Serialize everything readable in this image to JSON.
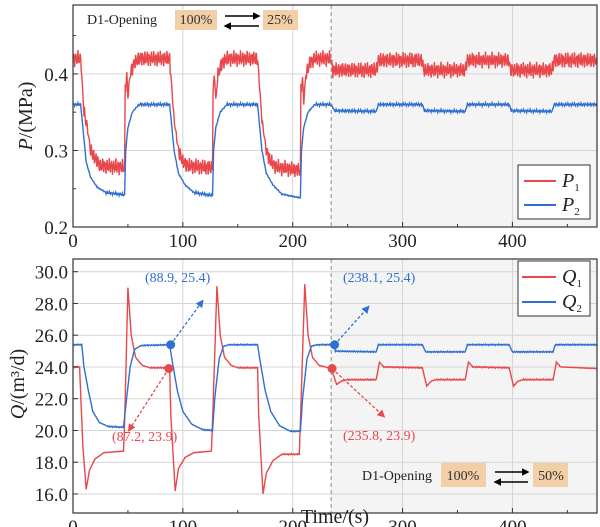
{
  "colors": {
    "series1": "#e8474b",
    "series2": "#2f6fd0",
    "shade": "#f4f4f4",
    "box": "#f3cfa8"
  },
  "chart_data": [
    {
      "type": "line",
      "ylabel_italic": "P",
      "ylabel_rest": "/(MPa)",
      "xlim": [
        0,
        477
      ],
      "ylim": [
        0.2,
        0.49
      ],
      "xticks": [
        "0",
        "100",
        "200",
        "300",
        "400"
      ],
      "yticks": [
        "0.2",
        "0.3",
        "0.4"
      ],
      "grid": true,
      "shaded_from": 235,
      "legend": "right",
      "annotation": {
        "label": "D1-Opening",
        "from": "100%",
        "to": "25%"
      },
      "series": [
        {
          "name": "P",
          "sub": "1",
          "color": "#e8474b",
          "points": [
            [
              0,
              0.42
            ],
            [
              7,
              0.42
            ],
            [
              10,
              0.35
            ],
            [
              13,
              0.33
            ],
            [
              16,
              0.3
            ],
            [
              20,
              0.29
            ],
            [
              25,
              0.28
            ],
            [
              47,
              0.278
            ],
            [
              47.5,
              0.38
            ],
            [
              49,
              0.4
            ],
            [
              50,
              0.37
            ],
            [
              52,
              0.4
            ],
            [
              56,
              0.415
            ],
            [
              60,
              0.42
            ],
            [
              88,
              0.42
            ],
            [
              89,
              0.4
            ],
            [
              92,
              0.34
            ],
            [
              96,
              0.3
            ],
            [
              100,
              0.285
            ],
            [
              105,
              0.28
            ],
            [
              127,
              0.277
            ],
            [
              127.5,
              0.38
            ],
            [
              129,
              0.395
            ],
            [
              130,
              0.365
            ],
            [
              132,
              0.4
            ],
            [
              136,
              0.415
            ],
            [
              140,
              0.42
            ],
            [
              168,
              0.42
            ],
            [
              169,
              0.4
            ],
            [
              172,
              0.34
            ],
            [
              176,
              0.3
            ],
            [
              180,
              0.285
            ],
            [
              186,
              0.278
            ],
            [
              207,
              0.274
            ],
            [
              207.5,
              0.38
            ],
            [
              209,
              0.395
            ],
            [
              210,
              0.362
            ],
            [
              212,
              0.4
            ],
            [
              216,
              0.415
            ],
            [
              220,
              0.42
            ],
            [
              235,
              0.42
            ],
            [
              236,
              0.405
            ],
            [
              276,
              0.405
            ],
            [
              278,
              0.418
            ],
            [
              318,
              0.418
            ],
            [
              319,
              0.405
            ],
            [
              357,
              0.405
            ],
            [
              359,
              0.418
            ],
            [
              397,
              0.418
            ],
            [
              398,
              0.405
            ],
            [
              436,
              0.405
            ],
            [
              438,
              0.418
            ],
            [
              477,
              0.418
            ]
          ]
        },
        {
          "name": "P",
          "sub": "2",
          "color": "#2f6fd0",
          "points": [
            [
              0,
              0.36
            ],
            [
              7,
              0.36
            ],
            [
              9,
              0.33
            ],
            [
              12,
              0.285
            ],
            [
              16,
              0.265
            ],
            [
              22,
              0.252
            ],
            [
              30,
              0.245
            ],
            [
              47,
              0.242
            ],
            [
              48,
              0.3
            ],
            [
              50,
              0.33
            ],
            [
              54,
              0.35
            ],
            [
              60,
              0.36
            ],
            [
              88,
              0.36
            ],
            [
              89,
              0.345
            ],
            [
              92,
              0.3
            ],
            [
              96,
              0.27
            ],
            [
              102,
              0.255
            ],
            [
              110,
              0.245
            ],
            [
              127,
              0.241
            ],
            [
              128,
              0.3
            ],
            [
              130,
              0.33
            ],
            [
              134,
              0.35
            ],
            [
              140,
              0.36
            ],
            [
              168,
              0.36
            ],
            [
              169,
              0.345
            ],
            [
              172,
              0.3
            ],
            [
              176,
              0.27
            ],
            [
              182,
              0.255
            ],
            [
              190,
              0.243
            ],
            [
              207,
              0.238
            ],
            [
              208,
              0.3
            ],
            [
              210,
              0.33
            ],
            [
              214,
              0.35
            ],
            [
              220,
              0.36
            ],
            [
              235,
              0.36
            ],
            [
              238,
              0.352
            ],
            [
              276,
              0.351
            ],
            [
              278,
              0.36
            ],
            [
              318,
              0.36
            ],
            [
              320,
              0.352
            ],
            [
              357,
              0.351
            ],
            [
              359,
              0.36
            ],
            [
              397,
              0.36
            ],
            [
              399,
              0.352
            ],
            [
              436,
              0.351
            ],
            [
              438,
              0.36
            ],
            [
              477,
              0.36
            ]
          ]
        }
      ]
    },
    {
      "type": "line",
      "xlabel": "Time/(s)",
      "ylabel_italic": "Q",
      "ylabel_rest": "/(m³/d)",
      "xlim": [
        0,
        477
      ],
      "ylim": [
        14.8,
        30.8
      ],
      "xticks": [
        "0",
        "100",
        "200",
        "300",
        "400"
      ],
      "yticks": [
        "16.0",
        "18.0",
        "20.0",
        "22.0",
        "24.0",
        "26.0",
        "28.0",
        "30.0"
      ],
      "grid": true,
      "shaded_from": 235,
      "legend": "top-right",
      "annotation": {
        "label": "D1-Opening",
        "from": "100%",
        "to": "50%"
      },
      "series": [
        {
          "name": "Q",
          "sub": "1",
          "color": "#e8474b",
          "points": [
            [
              0,
              24.0
            ],
            [
              6,
              24.0
            ],
            [
              9,
              19.0
            ],
            [
              12,
              16.3
            ],
            [
              15,
              17.5
            ],
            [
              20,
              18.2
            ],
            [
              28,
              18.6
            ],
            [
              46,
              18.7
            ],
            [
              47,
              20.5
            ],
            [
              50,
              29.0
            ],
            [
              53,
              26.0
            ],
            [
              57,
              24.6
            ],
            [
              63,
              24.1
            ],
            [
              70,
              23.95
            ],
            [
              88,
              23.95
            ],
            [
              89,
              21.0
            ],
            [
              93,
              16.2
            ],
            [
              96,
              17.6
            ],
            [
              102,
              18.3
            ],
            [
              110,
              18.6
            ],
            [
              126,
              18.7
            ],
            [
              127,
              20.5
            ],
            [
              131,
              29.1
            ],
            [
              134,
              26.0
            ],
            [
              138,
              24.6
            ],
            [
              144,
              24.1
            ],
            [
              150,
              23.95
            ],
            [
              168,
              23.95
            ],
            [
              169,
              21.0
            ],
            [
              173,
              16.0
            ],
            [
              176,
              17.3
            ],
            [
              182,
              18.1
            ],
            [
              190,
              18.5
            ],
            [
              206,
              18.5
            ],
            [
              207,
              20.5
            ],
            [
              211,
              29.2
            ],
            [
              214,
              26.0
            ],
            [
              218,
              24.6
            ],
            [
              224,
              24.1
            ],
            [
              235,
              23.9
            ],
            [
              237,
              23.5
            ],
            [
              240,
              22.9
            ],
            [
              244,
              23.1
            ],
            [
              250,
              23.2
            ],
            [
              276,
              23.2
            ],
            [
              279,
              24.3
            ],
            [
              283,
              24.0
            ],
            [
              318,
              23.95
            ],
            [
              322,
              22.8
            ],
            [
              326,
              23.1
            ],
            [
              330,
              23.2
            ],
            [
              357,
              23.2
            ],
            [
              360,
              24.3
            ],
            [
              364,
              24.0
            ],
            [
              397,
              23.95
            ],
            [
              401,
              22.8
            ],
            [
              405,
              23.1
            ],
            [
              410,
              23.2
            ],
            [
              437,
              23.2
            ],
            [
              440,
              24.3
            ],
            [
              444,
              24.0
            ],
            [
              477,
              23.9
            ]
          ]
        },
        {
          "name": "Q",
          "sub": "2",
          "color": "#2f6fd0",
          "points": [
            [
              0,
              25.4
            ],
            [
              8,
              25.4
            ],
            [
              10,
              24.0
            ],
            [
              14,
              22.5
            ],
            [
              18,
              21.2
            ],
            [
              24,
              20.5
            ],
            [
              32,
              20.25
            ],
            [
              46,
              20.2
            ],
            [
              48,
              21.5
            ],
            [
              52,
              24.0
            ],
            [
              56,
              25.1
            ],
            [
              62,
              25.35
            ],
            [
              88,
              25.4
            ],
            [
              90,
              24.5
            ],
            [
              95,
              22.5
            ],
            [
              100,
              21.2
            ],
            [
              108,
              20.4
            ],
            [
              118,
              20.05
            ],
            [
              127,
              20.0
            ],
            [
              129,
              22.0
            ],
            [
              133,
              24.5
            ],
            [
              137,
              25.3
            ],
            [
              142,
              25.4
            ],
            [
              168,
              25.4
            ],
            [
              170,
              24.5
            ],
            [
              175,
              22.5
            ],
            [
              180,
              21.2
            ],
            [
              188,
              20.3
            ],
            [
              198,
              19.95
            ],
            [
              207,
              19.95
            ],
            [
              209,
              22.0
            ],
            [
              213,
              24.5
            ],
            [
              217,
              25.3
            ],
            [
              222,
              25.4
            ],
            [
              236,
              25.4
            ],
            [
              239,
              25.0
            ],
            [
              276,
              24.95
            ],
            [
              278,
              25.4
            ],
            [
              318,
              25.4
            ],
            [
              321,
              24.95
            ],
            [
              357,
              24.95
            ],
            [
              359,
              25.4
            ],
            [
              397,
              25.4
            ],
            [
              400,
              24.95
            ],
            [
              437,
              24.95
            ],
            [
              439,
              25.4
            ],
            [
              477,
              25.4
            ]
          ]
        }
      ],
      "markers": [
        {
          "x": 88.9,
          "y": 25.4,
          "label": "(88.9, 25.4)",
          "color": "#2f6fd0"
        },
        {
          "x": 87.2,
          "y": 23.9,
          "label": "(87.2, 23.9)",
          "color": "#e8474b"
        },
        {
          "x": 238.1,
          "y": 25.4,
          "label": "(238.1, 25.4)",
          "color": "#2f6fd0"
        },
        {
          "x": 235.8,
          "y": 23.9,
          "label": "(235.8, 23.9)",
          "color": "#e8474b"
        }
      ]
    }
  ]
}
